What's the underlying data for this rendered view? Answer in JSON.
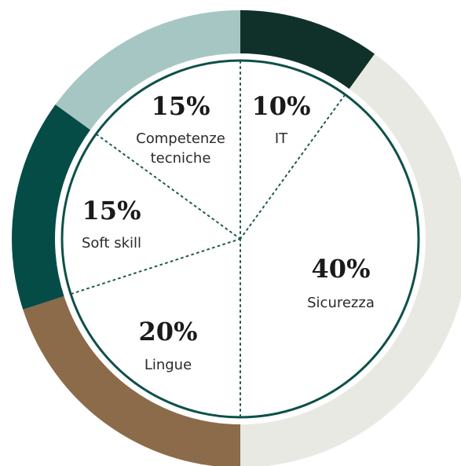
{
  "chart_data": {
    "type": "pie",
    "series": [
      {
        "label_lines": [
          "IT"
        ],
        "percent_text": "10%",
        "value": 10,
        "color": "#0f3129"
      },
      {
        "label_lines": [
          "Sicurezza"
        ],
        "percent_text": "40%",
        "value": 40,
        "color": "#e9e9e3"
      },
      {
        "label_lines": [
          "Lingue"
        ],
        "percent_text": "20%",
        "value": 20,
        "color": "#8b6b4a"
      },
      {
        "label_lines": [
          "Soft skill"
        ],
        "percent_text": "15%",
        "value": 15,
        "color": "#054c46"
      },
      {
        "label_lines": [
          "Competenze",
          "tecniche"
        ],
        "percent_text": "15%",
        "value": 15,
        "color": "#a6c6c4"
      }
    ],
    "start_angle_deg": 0,
    "direction": "clockwise",
    "inner_circle_color": "#0c5148",
    "divider_color": "#1c5a4c"
  }
}
